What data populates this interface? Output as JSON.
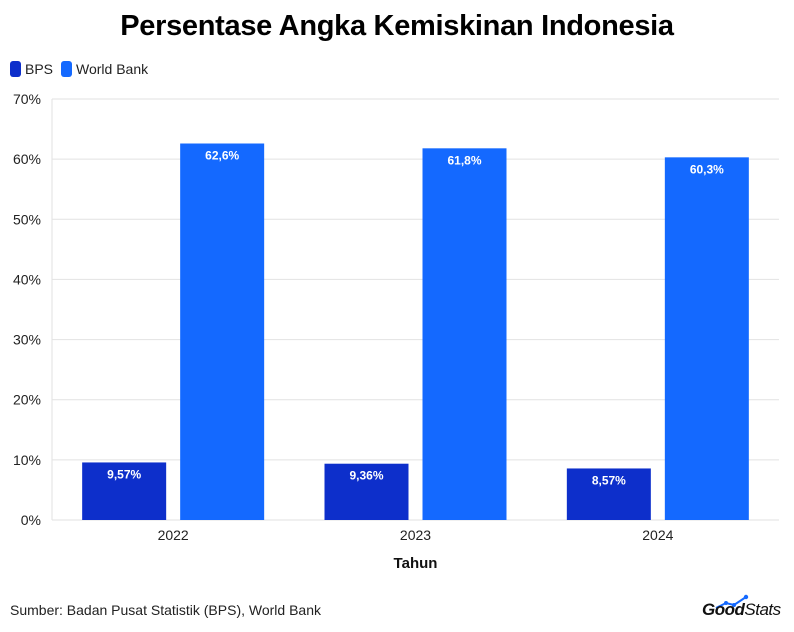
{
  "title": "Persentase Angka Kemiskinan Indonesia",
  "source": "Sumber: Badan Pusat Statistik (BPS), World Bank",
  "brand": {
    "part1": "Good",
    "part2": "Stats",
    "icon": "growth-chart-icon"
  },
  "colors": {
    "bps": "#0d2fcb",
    "world_bank": "#1469ff",
    "grid": "#e2e2e2",
    "axis_text": "#222222"
  },
  "chart_data": {
    "type": "bar",
    "title": "Persentase Angka Kemiskinan Indonesia",
    "xlabel": "Tahun",
    "ylabel": "",
    "categories": [
      "2022",
      "2023",
      "2024"
    ],
    "series": [
      {
        "name": "BPS",
        "values": [
          9.57,
          9.36,
          8.57
        ],
        "labels": [
          "9,57%",
          "9,36%",
          "8,57%"
        ]
      },
      {
        "name": "World Bank",
        "values": [
          62.6,
          61.8,
          60.3
        ],
        "labels": [
          "62,6%",
          "61,8%",
          "60,3%"
        ]
      }
    ],
    "ylim": [
      0,
      70
    ],
    "yticks": [
      0,
      10,
      20,
      30,
      40,
      50,
      60,
      70
    ],
    "ytick_labels": [
      "0%",
      "10%",
      "20%",
      "30%",
      "40%",
      "50%",
      "60%",
      "70%"
    ],
    "grid": true,
    "legend": "top-left"
  }
}
